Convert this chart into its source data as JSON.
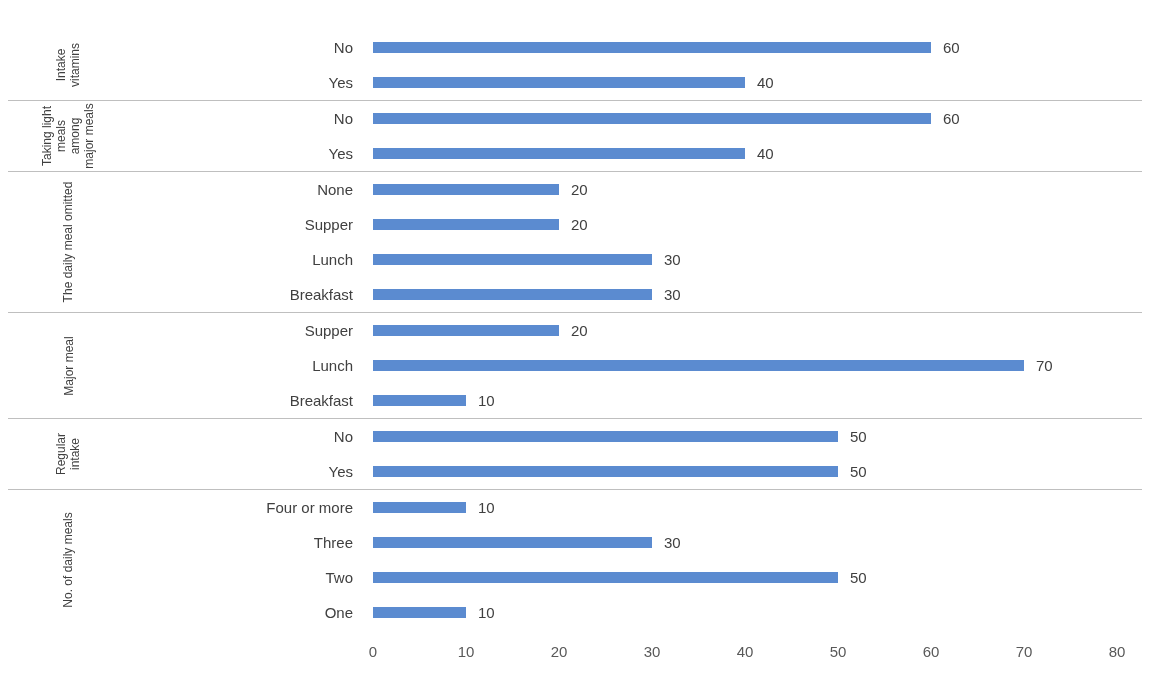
{
  "chart_data": [
    {
      "type": "bar",
      "orientation": "horizontal",
      "ylabel": "Intake vitamins",
      "categories": [
        "No",
        "Yes"
      ],
      "values": [
        60,
        40
      ],
      "color": "#5b8bd0",
      "data_labels": true,
      "xlim": [
        0,
        80
      ],
      "xticks": [
        0,
        10,
        20,
        30,
        40,
        50,
        60,
        70,
        80
      ],
      "tick_labels": "y",
      "grid": false
    },
    {
      "type": "bar",
      "orientation": "horizontal",
      "ylabel": "Taking light meals among major meals",
      "categories": [
        "No",
        "Yes"
      ],
      "values": [
        60,
        40
      ],
      "color": "#5b8bd0",
      "data_labels": true,
      "xlim": [
        0,
        80
      ],
      "xticks": [
        0,
        10,
        20,
        30,
        40,
        50,
        60,
        70,
        80
      ],
      "tick_labels": "y",
      "grid": false
    },
    {
      "type": "bar",
      "orientation": "horizontal",
      "ylabel": "The daily meal omitted",
      "categories": [
        "None",
        "Supper",
        "Lunch",
        "Breakfast"
      ],
      "values": [
        20,
        20,
        30,
        30
      ],
      "color": "#5b8bd0",
      "data_labels": true,
      "xlim": [
        0,
        80
      ],
      "xticks": [
        0,
        10,
        20,
        30,
        40,
        50,
        60,
        70,
        80
      ],
      "tick_labels": "y",
      "grid": false
    },
    {
      "type": "bar",
      "orientation": "horizontal",
      "ylabel": "Major meal",
      "categories": [
        "Supper",
        "Lunch",
        "Breakfast"
      ],
      "values": [
        20,
        70,
        10
      ],
      "color": "#5b8bd0",
      "data_labels": true,
      "xlim": [
        0,
        80
      ],
      "xticks": [
        0,
        10,
        20,
        30,
        40,
        50,
        60,
        70,
        80
      ],
      "tick_labels": "y",
      "grid": false
    },
    {
      "type": "bar",
      "orientation": "horizontal",
      "ylabel": "Regular intake",
      "categories": [
        "No",
        "Yes"
      ],
      "values": [
        50,
        50
      ],
      "color": "#5b8bd0",
      "data_labels": true,
      "xlim": [
        0,
        80
      ],
      "xticks": [
        0,
        10,
        20,
        30,
        40,
        50,
        60,
        70,
        80
      ],
      "tick_labels": "y",
      "grid": false
    },
    {
      "type": "bar",
      "orientation": "horizontal",
      "ylabel": "No. of daily meals",
      "categories": [
        "Four or more",
        "Three",
        "Two",
        "One"
      ],
      "values": [
        10,
        30,
        50,
        10
      ],
      "color": "#5b8bd0",
      "data_labels": true,
      "xlim": [
        0,
        80
      ],
      "xticks": [
        0,
        10,
        20,
        30,
        40,
        50,
        60,
        70,
        80
      ],
      "grid": false
    }
  ]
}
